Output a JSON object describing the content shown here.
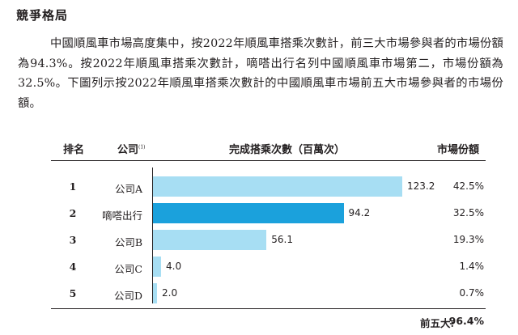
{
  "heading": "競爭格局",
  "paragraph": "中國順風車市場高度集中，按2022年順風車搭乘次數計，前三大市場參與者的市場份額為94.3%。按2022年順風車搭乘次數計，嘀嗒出行名列中國順風車市場第二，市場份額為32.5%。下圖列示按2022年順風車搭乘次數計的中國順風車市場前五大市場參與者的市場份額。",
  "table": {
    "headers": {
      "rank": "排名",
      "company": "公司",
      "company_note": "(1)",
      "rides": "完成搭乘次數（百萬次）",
      "share": "市場份額"
    },
    "total_label": "前五大:",
    "total_value": "96.4%"
  },
  "chart_data": {
    "type": "bar",
    "orientation": "horizontal",
    "categories": [
      "公司A",
      "嘀嗒出行",
      "公司B",
      "公司C",
      "公司D"
    ],
    "ranks": [
      "1",
      "2",
      "3",
      "4",
      "5"
    ],
    "values": [
      123.2,
      94.2,
      56.1,
      4.0,
      2.0
    ],
    "value_labels": [
      "123.2",
      "94.2",
      "56.1",
      "4.0",
      "2.0"
    ],
    "shares": [
      "42.5%",
      "32.5%",
      "19.3%",
      "1.4%",
      "0.7%"
    ],
    "highlight_index": 1,
    "xlim": [
      0,
      123.2
    ],
    "colors": {
      "bar": "#a7def3",
      "highlight": "#1ba1dc"
    }
  }
}
